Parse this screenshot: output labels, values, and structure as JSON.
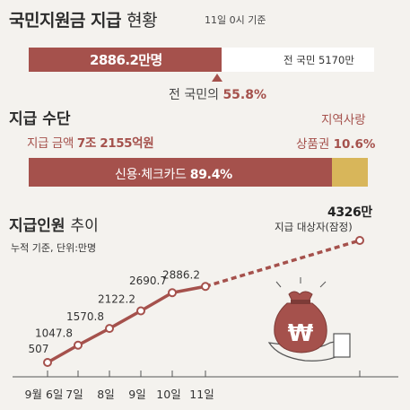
{
  "header": {
    "title_bold": "국민지원금 지급",
    "title_light": "현황",
    "date": "11일 0시 기준"
  },
  "paid_people": {
    "value_label": "2886.2만명",
    "total_label": "전 국민 5170만",
    "share_fraction": 0.558,
    "share_prefix": "전 국민의",
    "share_value": "55.8%"
  },
  "payment_method": {
    "heading": "지급 수단",
    "amount_prefix": "지급 금액",
    "amount_value": "7조 2155억원",
    "credit_label": "신용·체크카드",
    "credit_value": "89.4%",
    "credit_fraction": 0.894,
    "local_line1": "지역사랑",
    "local_line2": "상품권",
    "local_value": "10.6%",
    "local_fraction": 0.106
  },
  "trend": {
    "heading_bold": "지급인원",
    "heading_light": "추이",
    "note": "누적 기준, 단위:만명",
    "target_value": "4326만",
    "target_label": "지급 대상자(잠정)"
  },
  "colors": {
    "accent": "#a5514c",
    "local_gift": "#d8b65a",
    "background": "#f4f2ee"
  },
  "chart_data": {
    "type": "line",
    "title": "지급인원 추이",
    "unit": "만명",
    "categories": [
      "9월 6일",
      "7일",
      "8일",
      "9일",
      "10일",
      "11일",
      ""
    ],
    "values": [
      507,
      1047.8,
      1570.8,
      2122.2,
      2690.7,
      2886.2,
      4326
    ],
    "value_labels": [
      "507",
      "1047.8",
      "1570.8",
      "2122.2",
      "2690.7",
      "2886.2",
      ""
    ],
    "projected_from_index": 5,
    "projected_note": "dashed segment to target 4326"
  }
}
